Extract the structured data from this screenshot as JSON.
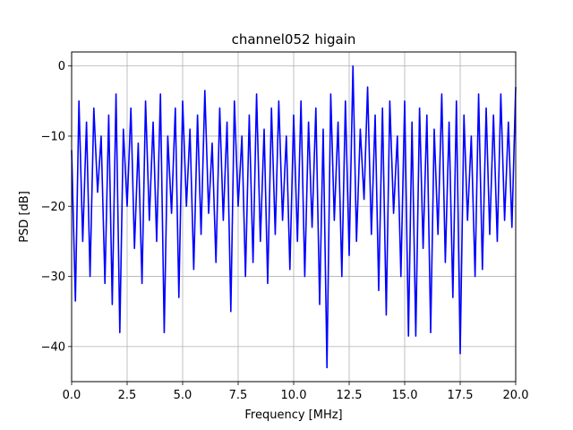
{
  "chart_data": {
    "type": "line",
    "title": "channel052 higain",
    "xlabel": "Frequency [MHz]",
    "ylabel": "PSD [dB]",
    "xlim": [
      0,
      20
    ],
    "ylim": [
      -45,
      2
    ],
    "xticks": [
      0.0,
      2.5,
      5.0,
      7.5,
      10.0,
      12.5,
      15.0,
      17.5,
      20.0
    ],
    "xtick_labels": [
      "0.0",
      "2.5",
      "5.0",
      "7.5",
      "10.0",
      "12.5",
      "15.0",
      "17.5",
      "20.0"
    ],
    "yticks": [
      0,
      -10,
      -20,
      -30,
      -40
    ],
    "ytick_labels": [
      "0",
      "−10",
      "−20",
      "−30",
      "−40"
    ],
    "grid": true,
    "series": [
      {
        "color": "#0000ff",
        "x": [
          0.0,
          0.17,
          0.33,
          0.5,
          0.67,
          0.83,
          1.0,
          1.17,
          1.33,
          1.5,
          1.67,
          1.83,
          2.0,
          2.17,
          2.33,
          2.5,
          2.67,
          2.83,
          3.0,
          3.17,
          3.33,
          3.5,
          3.67,
          3.83,
          4.0,
          4.17,
          4.33,
          4.5,
          4.67,
          4.83,
          5.0,
          5.17,
          5.33,
          5.5,
          5.67,
          5.83,
          6.0,
          6.17,
          6.33,
          6.5,
          6.67,
          6.83,
          7.0,
          7.17,
          7.33,
          7.5,
          7.67,
          7.83,
          8.0,
          8.17,
          8.33,
          8.5,
          8.67,
          8.83,
          9.0,
          9.17,
          9.33,
          9.5,
          9.67,
          9.83,
          10.0,
          10.17,
          10.33,
          10.5,
          10.67,
          10.83,
          11.0,
          11.17,
          11.33,
          11.5,
          11.67,
          11.83,
          12.0,
          12.17,
          12.33,
          12.5,
          12.67,
          12.83,
          13.0,
          13.17,
          13.33,
          13.5,
          13.67,
          13.83,
          14.0,
          14.17,
          14.33,
          14.5,
          14.67,
          14.83,
          15.0,
          15.17,
          15.33,
          15.5,
          15.67,
          15.83,
          16.0,
          16.17,
          16.33,
          16.5,
          16.67,
          16.83,
          17.0,
          17.17,
          17.33,
          17.5,
          17.67,
          17.83,
          18.0,
          18.17,
          18.33,
          18.5,
          18.67,
          18.83,
          19.0,
          19.17,
          19.33,
          19.5,
          19.67,
          19.83,
          20.0
        ],
        "values": [
          -12,
          -33.5,
          -5,
          -25,
          -8,
          -30,
          -6,
          -18,
          -10,
          -31,
          -7,
          -34,
          -4,
          -38,
          -9,
          -20,
          -6,
          -26,
          -11,
          -31,
          -5,
          -22,
          -8,
          -25,
          -4,
          -38,
          -10,
          -21,
          -6,
          -33,
          -5,
          -20,
          -9,
          -29,
          -7,
          -24,
          -3.5,
          -21,
          -11,
          -28,
          -6,
          -22,
          -8,
          -35,
          -5,
          -20,
          -10,
          -30,
          -7,
          -28,
          -4,
          -25,
          -9,
          -31,
          -6,
          -24,
          -5,
          -22,
          -10,
          -29,
          -7,
          -25,
          -5,
          -30,
          -8,
          -23,
          -6,
          -34,
          -9,
          -43,
          -4,
          -22,
          -8,
          -30,
          -5,
          -27,
          0,
          -25,
          -9,
          -19,
          -3,
          -24,
          -7,
          -32,
          -6,
          -35.5,
          -5,
          -21,
          -10,
          -30,
          -5,
          -38.5,
          -8,
          -38.5,
          -6,
          -26,
          -7,
          -38,
          -9,
          -24,
          -4,
          -28,
          -8,
          -33,
          -5,
          -41,
          -7,
          -22,
          -10,
          -30,
          -4,
          -29,
          -6,
          -24,
          -7,
          -25,
          -4,
          -22,
          -8,
          -23,
          -3
        ]
      }
    ]
  }
}
